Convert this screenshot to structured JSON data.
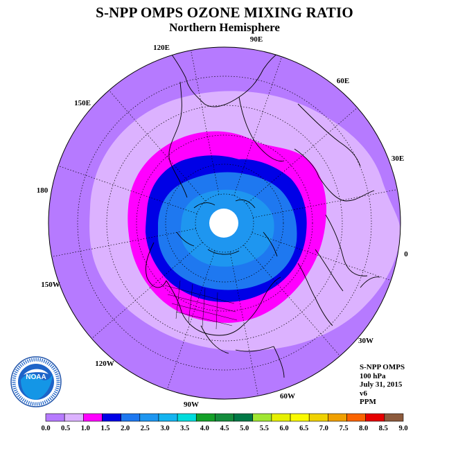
{
  "title": "S-NPP OMPS OZONE MIXING RATIO",
  "subtitle": "Northern Hemisphere",
  "longitude_labels": [
    "90E",
    "60E",
    "30E",
    "0",
    "30W",
    "60W",
    "90W",
    "120W",
    "150W",
    "180",
    "150E",
    "120E"
  ],
  "info": {
    "instrument": "S-NPP OMPS",
    "level": "100 hPa",
    "date": "July 31, 2015",
    "version": "v6",
    "units": "PPM"
  },
  "colorbar": {
    "ticks": [
      "0.0",
      "0.5",
      "1.0",
      "1.5",
      "2.0",
      "2.5",
      "3.0",
      "3.5",
      "4.0",
      "4.5",
      "5.0",
      "5.5",
      "6.0",
      "6.5",
      "7.0",
      "7.5",
      "8.0",
      "8.5",
      "9.0"
    ],
    "colors": [
      "#b67aff",
      "#dcb2ff",
      "#ff00ff",
      "#0000e6",
      "#1e78f0",
      "#1e96f0",
      "#14b4f0",
      "#00dcdc",
      "#14a028",
      "#148c3c",
      "#007846",
      "#a0e632",
      "#e6f000",
      "#fafa00",
      "#f0d200",
      "#f0a000",
      "#fa6400",
      "#e60000",
      "#8c5a3c"
    ]
  },
  "colors": {
    "outer_band": "#b67aff",
    "light_band": "#dcb2ff",
    "magenta_band": "#ff00ff",
    "blue_band": "#0000e6",
    "medium_blue_band": "#1e78f0",
    "light_blue_band": "#1e96f0",
    "no_data_cap": "#ffffff"
  },
  "logo": {
    "text": "NOAA",
    "ring_text": "NATIONAL OCEANIC AND ATMOSPHERIC ADMINISTRATION · U.S. DEPARTMENT OF COMMERCE"
  }
}
